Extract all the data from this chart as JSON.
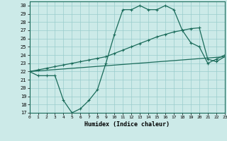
{
  "title": "",
  "xlabel": "Humidex (Indice chaleur)",
  "xlim": [
    0,
    23
  ],
  "ylim": [
    17,
    30.5
  ],
  "yticks": [
    17,
    18,
    19,
    20,
    21,
    22,
    23,
    24,
    25,
    26,
    27,
    28,
    29,
    30
  ],
  "xticks": [
    0,
    1,
    2,
    3,
    4,
    5,
    6,
    7,
    8,
    9,
    10,
    11,
    12,
    13,
    14,
    15,
    16,
    17,
    18,
    19,
    20,
    21,
    22,
    23
  ],
  "bg_color": "#cceae8",
  "line_color": "#1a6b5a",
  "grid_color": "#99cccc",
  "line1_x": [
    0,
    1,
    2,
    3,
    4,
    5,
    6,
    7,
    8,
    9,
    10,
    11,
    12,
    13,
    14,
    15,
    16,
    17,
    18,
    19,
    20,
    21,
    22,
    23
  ],
  "line1_y": [
    22,
    21.5,
    21.5,
    21.5,
    18.5,
    17,
    17.5,
    18.5,
    19.8,
    23,
    26.5,
    29.5,
    29.5,
    30,
    29.5,
    29.5,
    30,
    29.5,
    27,
    25.5,
    25.0,
    23,
    23.5,
    24
  ],
  "line2_x": [
    0,
    1,
    2,
    3,
    4,
    5,
    6,
    7,
    8,
    9,
    10,
    11,
    12,
    13,
    14,
    15,
    16,
    17,
    18,
    19,
    20,
    21,
    22,
    23
  ],
  "line2_y": [
    22,
    22.2,
    22.4,
    22.6,
    22.8,
    23.0,
    23.2,
    23.4,
    23.6,
    23.8,
    24.2,
    24.6,
    25.0,
    25.4,
    25.8,
    26.2,
    26.5,
    26.8,
    27.0,
    27.2,
    27.3,
    23.5,
    23.2,
    23.8
  ],
  "line3_x": [
    0,
    23
  ],
  "line3_y": [
    22,
    23.8
  ]
}
